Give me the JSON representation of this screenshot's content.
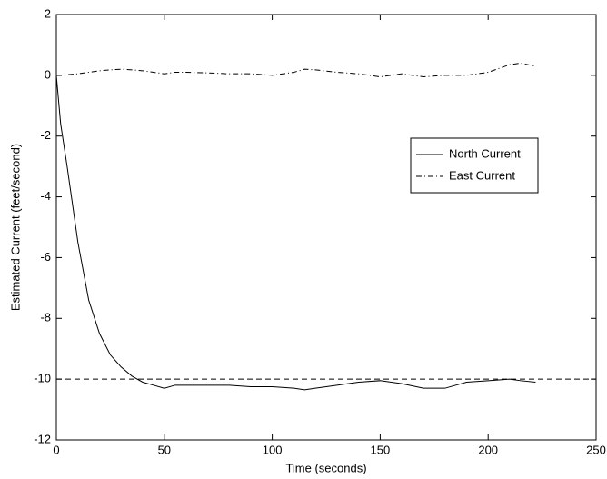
{
  "chart_data": {
    "type": "line",
    "xlabel": "Time (seconds)",
    "ylabel": "Estimated Current (feet/second)",
    "x": [
      0,
      2,
      5,
      10,
      15,
      20,
      25,
      30,
      35,
      40,
      45,
      50,
      55,
      60,
      70,
      80,
      90,
      100,
      110,
      115,
      120,
      130,
      140,
      150,
      160,
      170,
      180,
      190,
      200,
      210,
      215,
      222
    ],
    "series": [
      {
        "name": "North Current",
        "color": "#000000",
        "dash": "none",
        "values": [
          0,
          -1.6,
          -3,
          -5.5,
          -7.4,
          -8.5,
          -9.2,
          -9.6,
          -9.9,
          -10.1,
          -10.2,
          -10.3,
          -10.2,
          -10.2,
          -10.2,
          -10.2,
          -10.25,
          -10.25,
          -10.3,
          -10.35,
          -10.3,
          -10.2,
          -10.1,
          -10.05,
          -10.15,
          -10.3,
          -10.3,
          -10.1,
          -10.05,
          -10.0,
          -10.05,
          -10.1
        ]
      },
      {
        "name": "East Current",
        "color": "#000000",
        "dash": "6 3 1 3",
        "values": [
          0,
          0,
          0.02,
          0.05,
          0.1,
          0.15,
          0.18,
          0.2,
          0.18,
          0.15,
          0.1,
          0.05,
          0.1,
          0.1,
          0.08,
          0.05,
          0.05,
          0.0,
          0.1,
          0.2,
          0.18,
          0.1,
          0.05,
          -0.05,
          0.05,
          -0.05,
          0,
          0,
          0.1,
          0.35,
          0.4,
          0.3
        ]
      }
    ],
    "hline": -10,
    "xlim": [
      0,
      250
    ],
    "xticks": [
      0,
      50,
      100,
      150,
      200,
      250
    ],
    "ylim": [
      -12,
      2
    ],
    "yticks": [
      -12,
      -10,
      -8,
      -6,
      -4,
      -2,
      0,
      2
    ]
  }
}
